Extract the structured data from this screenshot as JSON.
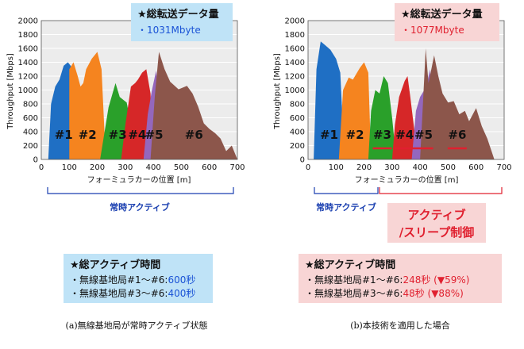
{
  "charts": [
    {
      "id": "a",
      "ylabel": "Throughput  [Mbps]",
      "xlabel": "フォーミュラカーの位置  [m]",
      "total_title": "★総転送データ量",
      "total_value": "・1031Mbyte",
      "span_label": "常時アクティブ",
      "active_title": "★総アクティブ時間",
      "active_line1_prefix": "・無線基地局#1～#6:",
      "active_line1_value": "600秒",
      "active_line2_prefix": "・無線基地局#3～#6:",
      "active_line2_value": "400秒",
      "caption": "(a)無線基地局が常時アクティブ状態"
    },
    {
      "id": "b",
      "ylabel": "Throughput  [Mbps]",
      "xlabel": "フォーミュラカーの位置  [m]",
      "total_title": "★総転送データ量",
      "total_value": "・1077Mbyte",
      "span_label": "常時アクティブ",
      "control_label_1": "アクティブ",
      "control_label_2": "/スリープ制御",
      "active_title": "★総アクティブ時間",
      "active_line1_prefix": "・無線基地局#1～#6:",
      "active_line1_value": "248秒 (▼59%)",
      "active_line2_prefix": "・無線基地局#3～#6:",
      "active_line2_value": "48秒  (▼88%)",
      "caption": "(b)本技術を適用した場合"
    }
  ],
  "chart_data": [
    {
      "type": "area",
      "xlim": [
        0,
        700
      ],
      "ylim": [
        0,
        2000
      ],
      "x_ticks": [
        0,
        100,
        200,
        300,
        400,
        500,
        600,
        700
      ],
      "y_ticks": [
        0,
        200,
        400,
        600,
        800,
        1000,
        1200,
        1400,
        1600,
        1800,
        2000
      ],
      "series": [
        {
          "name": "#1",
          "color": "#1f6fc4",
          "points": [
            [
              25,
              0
            ],
            [
              35,
              800
            ],
            [
              50,
              1050
            ],
            [
              65,
              1150
            ],
            [
              80,
              1350
            ],
            [
              95,
              1400
            ],
            [
              105,
              1350
            ],
            [
              115,
              1250
            ],
            [
              125,
              1100
            ],
            [
              135,
              0
            ]
          ]
        },
        {
          "name": "#2",
          "color": "#f5841f",
          "points": [
            [
              100,
              1300
            ],
            [
              115,
              1400
            ],
            [
              130,
              1200
            ],
            [
              140,
              1050
            ],
            [
              150,
              1100
            ],
            [
              160,
              1300
            ],
            [
              180,
              1450
            ],
            [
              200,
              1550
            ],
            [
              215,
              1300
            ],
            [
              230,
              0
            ],
            [
              100,
              0
            ]
          ]
        },
        {
          "name": "#3",
          "color": "#2aa02a",
          "points": [
            [
              210,
              0
            ],
            [
              240,
              750
            ],
            [
              265,
              1100
            ],
            [
              280,
              900
            ],
            [
              305,
              820
            ],
            [
              320,
              500
            ],
            [
              335,
              0
            ]
          ]
        },
        {
          "name": "#4",
          "color": "#d62728",
          "points": [
            [
              285,
              0
            ],
            [
              300,
              500
            ],
            [
              320,
              1050
            ],
            [
              335,
              1100
            ],
            [
              345,
              1150
            ],
            [
              360,
              1250
            ],
            [
              375,
              1300
            ],
            [
              390,
              950
            ],
            [
              400,
              0
            ]
          ]
        },
        {
          "name": "#5",
          "color": "#9467bd",
          "points": [
            [
              365,
              0
            ],
            [
              380,
              650
            ],
            [
              395,
              1000
            ],
            [
              410,
              1280
            ],
            [
              425,
              650
            ],
            [
              440,
              0
            ]
          ]
        },
        {
          "name": "#6",
          "color": "#8c564b",
          "points": [
            [
              390,
              0
            ],
            [
              405,
              900
            ],
            [
              420,
              1550
            ],
            [
              440,
              1300
            ],
            [
              460,
              1120
            ],
            [
              490,
              1010
            ],
            [
              520,
              1060
            ],
            [
              540,
              950
            ],
            [
              560,
              760
            ],
            [
              580,
              520
            ],
            [
              600,
              440
            ],
            [
              620,
              380
            ],
            [
              640,
              300
            ],
            [
              660,
              120
            ],
            [
              680,
              200
            ],
            [
              700,
              0
            ]
          ]
        }
      ]
    },
    {
      "type": "area",
      "xlim": [
        0,
        700
      ],
      "ylim": [
        0,
        2000
      ],
      "x_ticks": [
        0,
        100,
        200,
        300,
        400,
        500,
        600,
        700
      ],
      "y_ticks": [
        0,
        200,
        400,
        600,
        800,
        1000,
        1200,
        1400,
        1600,
        1800,
        2000
      ],
      "series": [
        {
          "name": "#1",
          "color": "#1f6fc4",
          "points": [
            [
              20,
              0
            ],
            [
              30,
              1300
            ],
            [
              45,
              1700
            ],
            [
              60,
              1650
            ],
            [
              80,
              1580
            ],
            [
              100,
              1450
            ],
            [
              115,
              1250
            ],
            [
              130,
              0
            ]
          ]
        },
        {
          "name": "#2",
          "color": "#f5841f",
          "points": [
            [
              110,
              0
            ],
            [
              125,
              1000
            ],
            [
              145,
              1180
            ],
            [
              160,
              1150
            ],
            [
              185,
              1320
            ],
            [
              200,
              1400
            ],
            [
              215,
              1250
            ],
            [
              225,
              0
            ]
          ]
        },
        {
          "name": "#3",
          "color": "#2aa02a",
          "points": [
            [
              215,
              0
            ],
            [
              225,
              700
            ],
            [
              240,
              1000
            ],
            [
              255,
              950
            ],
            [
              270,
              1200
            ],
            [
              285,
              1100
            ],
            [
              300,
              600
            ],
            [
              315,
              0
            ]
          ]
        },
        {
          "name": "#4",
          "color": "#d62728",
          "points": [
            [
              300,
              0
            ],
            [
              310,
              500
            ],
            [
              325,
              900
            ],
            [
              345,
              1130
            ],
            [
              355,
              1200
            ],
            [
              365,
              900
            ],
            [
              380,
              400
            ],
            [
              390,
              0
            ]
          ]
        },
        {
          "name": "#5",
          "color": "#9467bd",
          "points": [
            [
              370,
              0
            ],
            [
              385,
              700
            ],
            [
              400,
              900
            ],
            [
              415,
              1000
            ],
            [
              425,
              1100
            ],
            [
              435,
              1300
            ],
            [
              445,
              700
            ],
            [
              455,
              0
            ]
          ]
        },
        {
          "name": "#6",
          "color": "#8c564b",
          "points": [
            [
              400,
              0
            ],
            [
              410,
              800
            ],
            [
              420,
              1600
            ],
            [
              430,
              1100
            ],
            [
              440,
              1300
            ],
            [
              450,
              1500
            ],
            [
              465,
              1200
            ],
            [
              480,
              950
            ],
            [
              500,
              820
            ],
            [
              520,
              840
            ],
            [
              540,
              650
            ],
            [
              560,
              700
            ],
            [
              575,
              550
            ],
            [
              600,
              740
            ],
            [
              620,
              480
            ],
            [
              640,
              300
            ],
            [
              655,
              120
            ],
            [
              665,
              0
            ]
          ]
        }
      ],
      "active_sleep_markers": [
        "#3",
        "#4",
        "#5",
        "#6"
      ]
    }
  ]
}
